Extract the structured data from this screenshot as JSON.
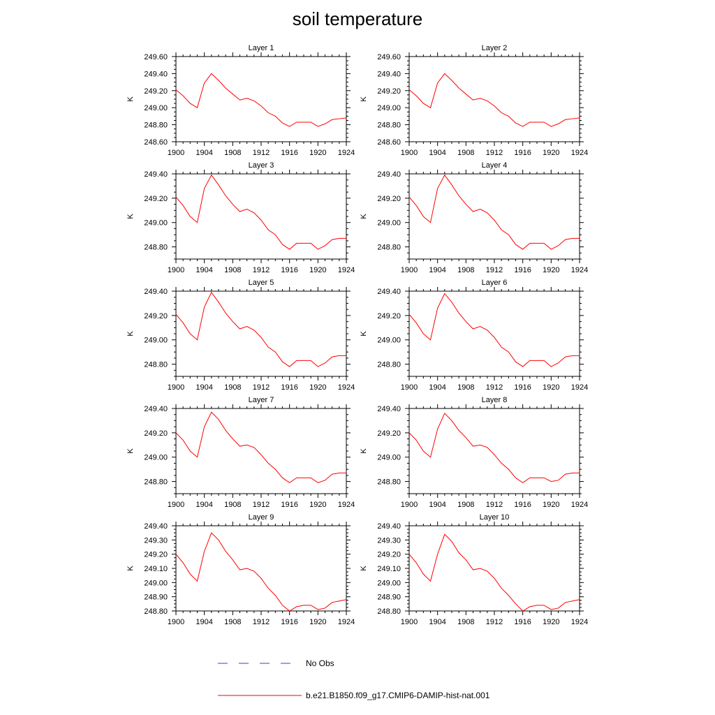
{
  "title": "soil temperature",
  "legend": {
    "placement": "bottom-center",
    "entries": [
      {
        "label": "No Obs",
        "color": "#3b3bd8",
        "style": "dashed"
      },
      {
        "label": "b.e21.B1850.f09_g17.CMIP6-DAMIP-hist-nat.001",
        "color": "#ff0000",
        "style": "solid"
      }
    ]
  },
  "chart_data": [
    {
      "type": "line",
      "title": "Layer 1",
      "ylabel": "K",
      "xlim": [
        1900,
        1924
      ],
      "ylim": [
        248.6,
        249.6
      ],
      "xticks": [
        "1900",
        "1904",
        "1908",
        "1912",
        "1916",
        "1920",
        "1924"
      ],
      "yticks": [
        "248.60",
        "248.80",
        "249.00",
        "249.20",
        "249.40",
        "249.60"
      ],
      "x": [
        1900,
        1901,
        1902,
        1903,
        1904,
        1905,
        1906,
        1907,
        1908,
        1909,
        1910,
        1911,
        1912,
        1913,
        1914,
        1915,
        1916,
        1917,
        1918,
        1919,
        1920,
        1921,
        1922,
        1923,
        1924
      ],
      "series": [
        {
          "name": "b.e21.B1850.f09_g17.CMIP6-DAMIP-hist-nat.001",
          "color": "#ff0000",
          "values": [
            249.21,
            249.14,
            249.05,
            249.0,
            249.29,
            249.4,
            249.32,
            249.23,
            249.16,
            249.09,
            249.11,
            249.08,
            249.02,
            248.94,
            248.9,
            248.82,
            248.78,
            248.83,
            248.83,
            248.83,
            248.78,
            248.81,
            248.86,
            248.87,
            248.88
          ]
        }
      ]
    },
    {
      "type": "line",
      "title": "Layer 2",
      "ylabel": "K",
      "xlim": [
        1900,
        1924
      ],
      "ylim": [
        248.6,
        249.6
      ],
      "xticks": [
        "1900",
        "1904",
        "1908",
        "1912",
        "1916",
        "1920",
        "1924"
      ],
      "yticks": [
        "248.60",
        "248.80",
        "249.00",
        "249.20",
        "249.40",
        "249.60"
      ],
      "x": [
        1900,
        1901,
        1902,
        1903,
        1904,
        1905,
        1906,
        1907,
        1908,
        1909,
        1910,
        1911,
        1912,
        1913,
        1914,
        1915,
        1916,
        1917,
        1918,
        1919,
        1920,
        1921,
        1922,
        1923,
        1924
      ],
      "series": [
        {
          "name": "b.e21.B1850.f09_g17.CMIP6-DAMIP-hist-nat.001",
          "color": "#ff0000",
          "values": [
            249.21,
            249.14,
            249.05,
            249.0,
            249.29,
            249.4,
            249.32,
            249.23,
            249.16,
            249.09,
            249.11,
            249.08,
            249.02,
            248.94,
            248.9,
            248.82,
            248.78,
            248.83,
            248.83,
            248.83,
            248.78,
            248.81,
            248.86,
            248.87,
            248.88
          ]
        }
      ]
    },
    {
      "type": "line",
      "title": "Layer 3",
      "ylabel": "K",
      "xlim": [
        1900,
        1924
      ],
      "ylim": [
        248.7,
        249.4
      ],
      "xticks": [
        "1900",
        "1904",
        "1908",
        "1912",
        "1916",
        "1920",
        "1924"
      ],
      "yticks": [
        "248.80",
        "249.00",
        "249.20",
        "249.40"
      ],
      "x": [
        1900,
        1901,
        1902,
        1903,
        1904,
        1905,
        1906,
        1907,
        1908,
        1909,
        1910,
        1911,
        1912,
        1913,
        1914,
        1915,
        1916,
        1917,
        1918,
        1919,
        1920,
        1921,
        1922,
        1923,
        1924
      ],
      "series": [
        {
          "name": "b.e21.B1850.f09_g17.CMIP6-DAMIP-hist-nat.001",
          "color": "#ff0000",
          "values": [
            249.21,
            249.14,
            249.05,
            249.0,
            249.28,
            249.39,
            249.31,
            249.22,
            249.15,
            249.09,
            249.11,
            249.08,
            249.02,
            248.94,
            248.9,
            248.82,
            248.78,
            248.83,
            248.83,
            248.83,
            248.78,
            248.81,
            248.86,
            248.87,
            248.87
          ]
        }
      ]
    },
    {
      "type": "line",
      "title": "Layer 4",
      "ylabel": "K",
      "xlim": [
        1900,
        1924
      ],
      "ylim": [
        248.7,
        249.4
      ],
      "xticks": [
        "1900",
        "1904",
        "1908",
        "1912",
        "1916",
        "1920",
        "1924"
      ],
      "yticks": [
        "248.80",
        "249.00",
        "249.20",
        "249.40"
      ],
      "x": [
        1900,
        1901,
        1902,
        1903,
        1904,
        1905,
        1906,
        1907,
        1908,
        1909,
        1910,
        1911,
        1912,
        1913,
        1914,
        1915,
        1916,
        1917,
        1918,
        1919,
        1920,
        1921,
        1922,
        1923,
        1924
      ],
      "series": [
        {
          "name": "b.e21.B1850.f09_g17.CMIP6-DAMIP-hist-nat.001",
          "color": "#ff0000",
          "values": [
            249.21,
            249.14,
            249.05,
            249.0,
            249.28,
            249.39,
            249.31,
            249.22,
            249.15,
            249.09,
            249.11,
            249.08,
            249.02,
            248.94,
            248.9,
            248.82,
            248.78,
            248.83,
            248.83,
            248.83,
            248.78,
            248.81,
            248.86,
            248.87,
            248.87
          ]
        }
      ]
    },
    {
      "type": "line",
      "title": "Layer 5",
      "ylabel": "K",
      "xlim": [
        1900,
        1924
      ],
      "ylim": [
        248.7,
        249.4
      ],
      "xticks": [
        "1900",
        "1904",
        "1908",
        "1912",
        "1916",
        "1920",
        "1924"
      ],
      "yticks": [
        "248.80",
        "249.00",
        "249.20",
        "249.40"
      ],
      "x": [
        1900,
        1901,
        1902,
        1903,
        1904,
        1905,
        1906,
        1907,
        1908,
        1909,
        1910,
        1911,
        1912,
        1913,
        1914,
        1915,
        1916,
        1917,
        1918,
        1919,
        1920,
        1921,
        1922,
        1923,
        1924
      ],
      "series": [
        {
          "name": "b.e21.B1850.f09_g17.CMIP6-DAMIP-hist-nat.001",
          "color": "#ff0000",
          "values": [
            249.21,
            249.14,
            249.05,
            249.0,
            249.27,
            249.39,
            249.31,
            249.22,
            249.15,
            249.09,
            249.11,
            249.08,
            249.02,
            248.94,
            248.9,
            248.82,
            248.78,
            248.83,
            248.83,
            248.83,
            248.78,
            248.81,
            248.86,
            248.87,
            248.87
          ]
        }
      ]
    },
    {
      "type": "line",
      "title": "Layer 6",
      "ylabel": "K",
      "xlim": [
        1900,
        1924
      ],
      "ylim": [
        248.7,
        249.4
      ],
      "xticks": [
        "1900",
        "1904",
        "1908",
        "1912",
        "1916",
        "1920",
        "1924"
      ],
      "yticks": [
        "248.80",
        "249.00",
        "249.20",
        "249.40"
      ],
      "x": [
        1900,
        1901,
        1902,
        1903,
        1904,
        1905,
        1906,
        1907,
        1908,
        1909,
        1910,
        1911,
        1912,
        1913,
        1914,
        1915,
        1916,
        1917,
        1918,
        1919,
        1920,
        1921,
        1922,
        1923,
        1924
      ],
      "series": [
        {
          "name": "b.e21.B1850.f09_g17.CMIP6-DAMIP-hist-nat.001",
          "color": "#ff0000",
          "values": [
            249.21,
            249.14,
            249.05,
            249.0,
            249.26,
            249.38,
            249.31,
            249.22,
            249.15,
            249.09,
            249.11,
            249.08,
            249.02,
            248.94,
            248.9,
            248.82,
            248.78,
            248.83,
            248.83,
            248.83,
            248.78,
            248.81,
            248.86,
            248.87,
            248.87
          ]
        }
      ]
    },
    {
      "type": "line",
      "title": "Layer 7",
      "ylabel": "K",
      "xlim": [
        1900,
        1924
      ],
      "ylim": [
        248.7,
        249.4
      ],
      "xticks": [
        "1900",
        "1904",
        "1908",
        "1912",
        "1916",
        "1920",
        "1924"
      ],
      "yticks": [
        "248.80",
        "249.00",
        "249.20",
        "249.40"
      ],
      "x": [
        1900,
        1901,
        1902,
        1903,
        1904,
        1905,
        1906,
        1907,
        1908,
        1909,
        1910,
        1911,
        1912,
        1913,
        1914,
        1915,
        1916,
        1917,
        1918,
        1919,
        1920,
        1921,
        1922,
        1923,
        1924
      ],
      "series": [
        {
          "name": "b.e21.B1850.f09_g17.CMIP6-DAMIP-hist-nat.001",
          "color": "#ff0000",
          "values": [
            249.2,
            249.14,
            249.05,
            249.0,
            249.25,
            249.37,
            249.31,
            249.22,
            249.15,
            249.09,
            249.1,
            249.08,
            249.02,
            248.95,
            248.9,
            248.83,
            248.79,
            248.83,
            248.83,
            248.83,
            248.79,
            248.81,
            248.86,
            248.87,
            248.87
          ]
        }
      ]
    },
    {
      "type": "line",
      "title": "Layer 8",
      "ylabel": "K",
      "xlim": [
        1900,
        1924
      ],
      "ylim": [
        248.7,
        249.4
      ],
      "xticks": [
        "1900",
        "1904",
        "1908",
        "1912",
        "1916",
        "1920",
        "1924"
      ],
      "yticks": [
        "248.80",
        "249.00",
        "249.20",
        "249.40"
      ],
      "x": [
        1900,
        1901,
        1902,
        1903,
        1904,
        1905,
        1906,
        1907,
        1908,
        1909,
        1910,
        1911,
        1912,
        1913,
        1914,
        1915,
        1916,
        1917,
        1918,
        1919,
        1920,
        1921,
        1922,
        1923,
        1924
      ],
      "series": [
        {
          "name": "b.e21.B1850.f09_g17.CMIP6-DAMIP-hist-nat.001",
          "color": "#ff0000",
          "values": [
            249.2,
            249.14,
            249.05,
            249.0,
            249.23,
            249.36,
            249.3,
            249.22,
            249.16,
            249.09,
            249.1,
            249.08,
            249.02,
            248.95,
            248.9,
            248.83,
            248.79,
            248.83,
            248.83,
            248.83,
            248.8,
            248.81,
            248.86,
            248.87,
            248.87
          ]
        }
      ]
    },
    {
      "type": "line",
      "title": "Layer 9",
      "ylabel": "K",
      "xlim": [
        1900,
        1924
      ],
      "ylim": [
        248.8,
        249.4
      ],
      "xticks": [
        "1900",
        "1904",
        "1908",
        "1912",
        "1916",
        "1920",
        "1924"
      ],
      "yticks": [
        "248.80",
        "248.90",
        "249.00",
        "249.10",
        "249.20",
        "249.30",
        "249.40"
      ],
      "x": [
        1900,
        1901,
        1902,
        1903,
        1904,
        1905,
        1906,
        1907,
        1908,
        1909,
        1910,
        1911,
        1912,
        1913,
        1914,
        1915,
        1916,
        1917,
        1918,
        1919,
        1920,
        1921,
        1922,
        1923,
        1924
      ],
      "series": [
        {
          "name": "b.e21.B1850.f09_g17.CMIP6-DAMIP-hist-nat.001",
          "color": "#ff0000",
          "values": [
            249.2,
            249.14,
            249.06,
            249.01,
            249.22,
            249.35,
            249.3,
            249.22,
            249.16,
            249.09,
            249.1,
            249.08,
            249.03,
            248.96,
            248.91,
            248.84,
            248.8,
            248.83,
            248.84,
            248.84,
            248.81,
            248.82,
            248.86,
            248.87,
            248.88
          ]
        }
      ]
    },
    {
      "type": "line",
      "title": "Layer 10",
      "ylabel": "K",
      "xlim": [
        1900,
        1924
      ],
      "ylim": [
        248.8,
        249.4
      ],
      "xticks": [
        "1900",
        "1904",
        "1908",
        "1912",
        "1916",
        "1920",
        "1924"
      ],
      "yticks": [
        "248.80",
        "248.90",
        "249.00",
        "249.10",
        "249.20",
        "249.30",
        "249.40"
      ],
      "x": [
        1900,
        1901,
        1902,
        1903,
        1904,
        1905,
        1906,
        1907,
        1908,
        1909,
        1910,
        1911,
        1912,
        1913,
        1914,
        1915,
        1916,
        1917,
        1918,
        1919,
        1920,
        1921,
        1922,
        1923,
        1924
      ],
      "series": [
        {
          "name": "b.e21.B1850.f09_g17.CMIP6-DAMIP-hist-nat.001",
          "color": "#ff0000",
          "values": [
            249.2,
            249.14,
            249.06,
            249.01,
            249.2,
            249.34,
            249.29,
            249.21,
            249.16,
            249.09,
            249.1,
            249.08,
            249.03,
            248.96,
            248.91,
            248.85,
            248.8,
            248.83,
            248.84,
            248.84,
            248.81,
            248.82,
            248.86,
            248.87,
            248.88
          ]
        }
      ]
    }
  ]
}
